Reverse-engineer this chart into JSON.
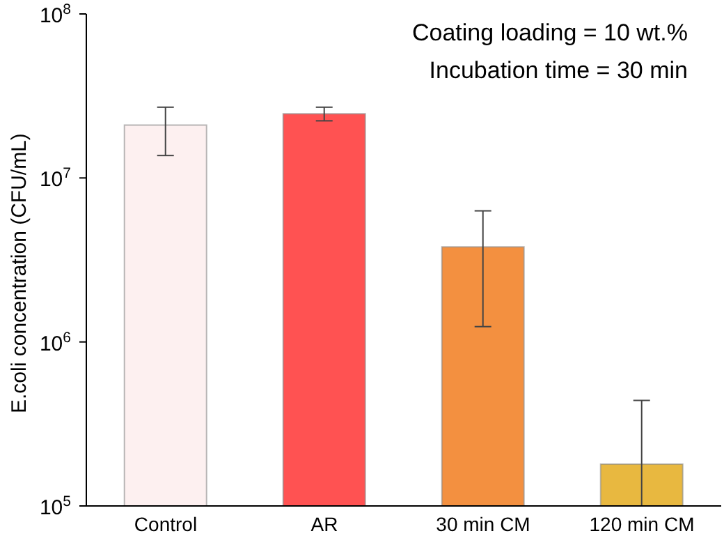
{
  "chart_data": {
    "type": "bar",
    "categories": [
      "Control",
      "AR",
      "30 min CM",
      "120 min CM"
    ],
    "values": [
      21000000,
      24600000,
      3800000,
      180000
    ],
    "colors": [
      "#fdf0f0",
      "#ff5252",
      "#f39040",
      "#e8b840"
    ],
    "errors": [
      [
        13700000,
        27000000
      ],
      [
        22300000,
        27000000
      ],
      [
        1240000,
        6300000
      ],
      [
        100000,
        440000
      ]
    ],
    "log": true,
    "ylim": [
      100000,
      100000000
    ],
    "yticks": [
      {
        "value": 100000,
        "label": "10$^{5}$"
      },
      {
        "value": 1000000,
        "label": "10$^{6}$"
      },
      {
        "value": 10000000,
        "label": "10$^{7}$"
      },
      {
        "value": 100000000,
        "label": "10$^{8}$"
      }
    ],
    "ylabel": "E.coli concentration (CFU/mL)",
    "annotations": [
      "Coating loading = 10 wt.%",
      "Incubation time = 30 min"
    ],
    "grid": false,
    "legend": false
  }
}
